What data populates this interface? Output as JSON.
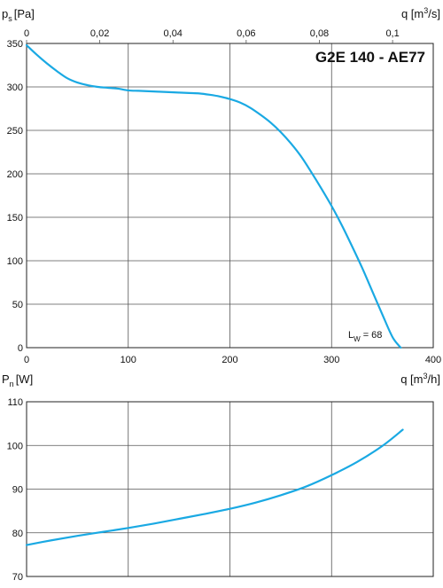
{
  "chart_data": [
    {
      "type": "line",
      "title": "G2E 140 - AE77",
      "ylabel": {
        "base": "p",
        "sub": "s",
        "unit": "[Pa]"
      },
      "xlabel": {
        "text": "q [m",
        "sup": "3",
        "tail": "/h]"
      },
      "x2label": {
        "text": "q [m",
        "sup": "3",
        "tail": "/s]"
      },
      "xlim": [
        0,
        400
      ],
      "ylim": [
        0,
        350
      ],
      "x_ticks": [
        "0",
        "100",
        "200",
        "300",
        "400"
      ],
      "y_ticks": [
        "0",
        "50",
        "100",
        "150",
        "200",
        "250",
        "300",
        "350"
      ],
      "x2_ticks": [
        {
          "value": 0,
          "label": "0"
        },
        {
          "value": 0.02,
          "label": "0,02"
        },
        {
          "value": 0.04,
          "label": "0,04"
        },
        {
          "value": 0.06,
          "label": "0,06"
        },
        {
          "value": 0.08,
          "label": "0,08"
        },
        {
          "value": 0.1,
          "label": "0,1"
        }
      ],
      "annotation": {
        "base": "L",
        "sub": "W",
        "value": "= 68"
      },
      "grid": true,
      "series": [
        {
          "color": "#1aa9e3",
          "x": [
            0,
            10,
            20,
            30,
            40,
            50,
            60,
            70,
            80,
            90,
            100,
            110,
            120,
            130,
            140,
            150,
            160,
            170,
            180,
            190,
            200,
            210,
            220,
            230,
            240,
            250,
            260,
            270,
            280,
            290,
            300,
            310,
            320,
            330,
            340,
            350,
            360,
            368
          ],
          "y": [
            348,
            337,
            327,
            318,
            310,
            305,
            302,
            300,
            299,
            298,
            296,
            295.5,
            295,
            294.5,
            294,
            293.5,
            293,
            292.5,
            291,
            289,
            286,
            282,
            276,
            268,
            259,
            248,
            235,
            220,
            202,
            183,
            163,
            141,
            117,
            92,
            65,
            38,
            12,
            0
          ]
        }
      ]
    },
    {
      "type": "line",
      "ylabel": {
        "base": "P",
        "sub": "n",
        "unit": "[W]"
      },
      "xlim": [
        0,
        400
      ],
      "ylim": [
        70,
        110
      ],
      "y_ticks": [
        "70",
        "80",
        "90",
        "100",
        "110"
      ],
      "grid": true,
      "series": [
        {
          "color": "#1aa9e3",
          "x": [
            0,
            25,
            50,
            75,
            100,
            125,
            150,
            175,
            200,
            225,
            250,
            275,
            300,
            325,
            350,
            370
          ],
          "y": [
            77.2,
            78.3,
            79.3,
            80.2,
            81.1,
            82.1,
            83.2,
            84.3,
            85.5,
            86.9,
            88.6,
            90.6,
            93.2,
            96.2,
            99.9,
            103.6
          ]
        }
      ]
    }
  ]
}
